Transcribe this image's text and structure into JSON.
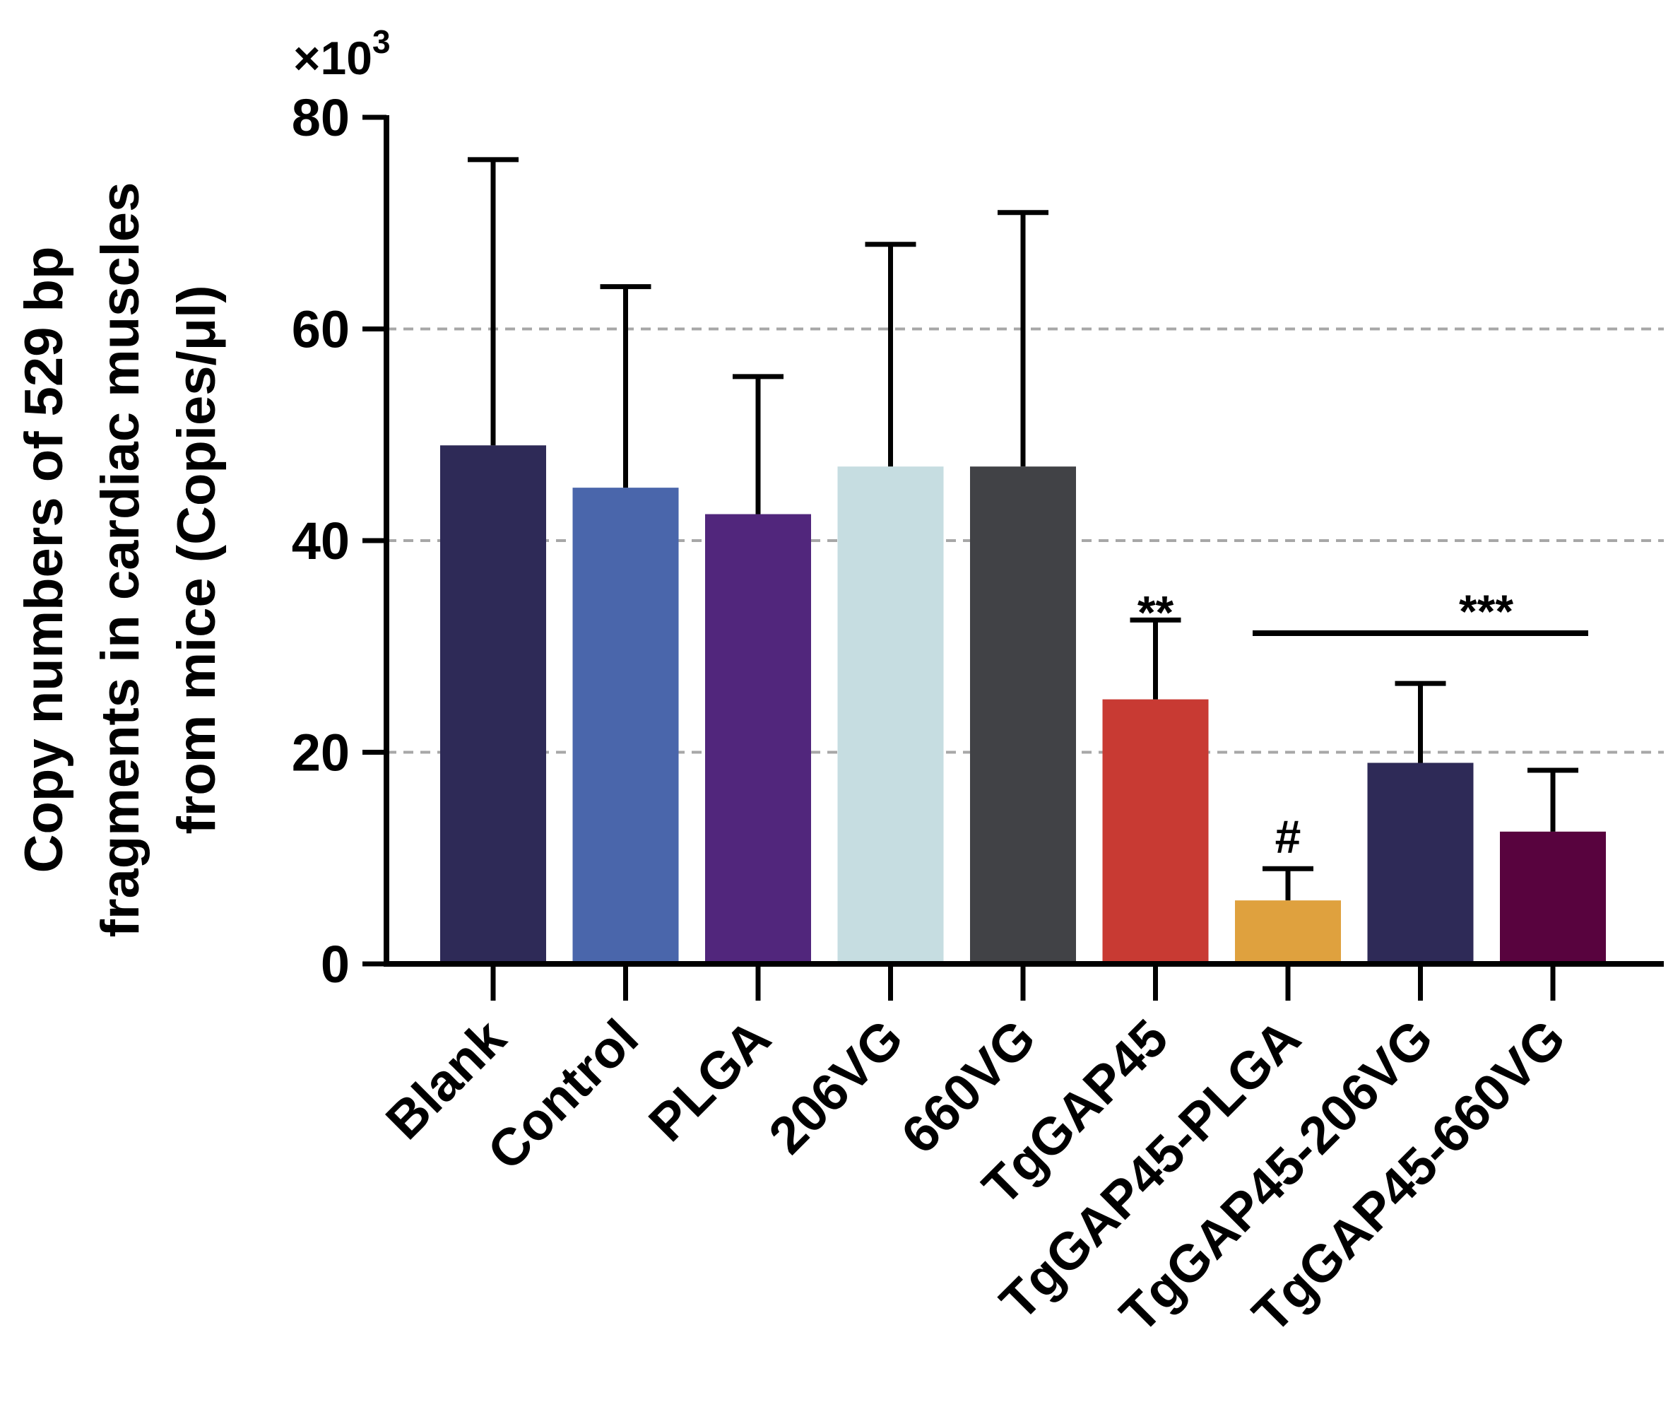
{
  "chart_data": {
    "type": "bar",
    "title": "",
    "xlabel": "",
    "ylabel": [
      "Copy numbers of 529 bp",
      "fragments in cardiac muscles",
      "from mice (Copies/μl)"
    ],
    "y_multiplier": {
      "base": "×10",
      "exponent": "3"
    },
    "ylim": [
      0,
      80
    ],
    "yticks": [
      0,
      20,
      40,
      60,
      80
    ],
    "grid": "horizontal dashed at 20, 40, 60",
    "categories": [
      "Blank",
      "Control",
      "PLGA",
      "206VG",
      "660VG",
      "TgGAP45",
      "TgGAP45-PLGA",
      "TgGAP45-206VG",
      "TgGAP45-660VG"
    ],
    "values": [
      49,
      45,
      42.5,
      47,
      47,
      25,
      6,
      19,
      12.5
    ],
    "errors": [
      27,
      19,
      13,
      21,
      24,
      7.5,
      3,
      7.5,
      5.8
    ],
    "colors": [
      "#2e2a57",
      "#4a66ab",
      "#51267c",
      "#c6dde1",
      "#414246",
      "#c83a33",
      "#dfa13e",
      "#2e2a57",
      "#58033e"
    ],
    "annotations": [
      {
        "text": "**",
        "category": "TgGAP45"
      },
      {
        "text": "#",
        "category": "TgGAP45-PLGA"
      },
      {
        "text": "***",
        "from": "TgGAP45-PLGA",
        "to": "TgGAP45-660VG"
      }
    ]
  }
}
